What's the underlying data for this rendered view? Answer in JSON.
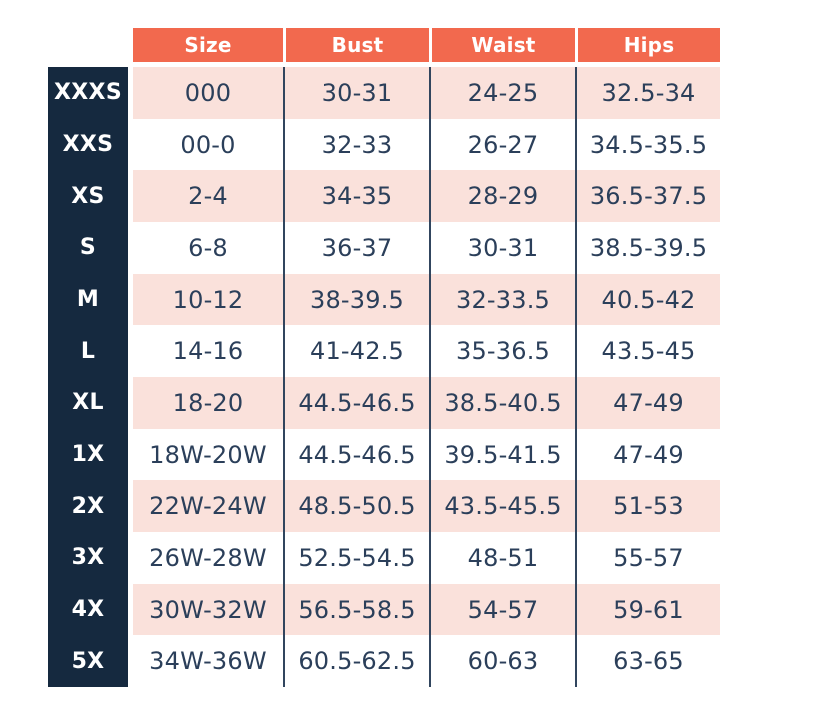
{
  "colors": {
    "header_bg": "#F2694E",
    "row_pink": "#FAE1DB",
    "row_white": "#FFFFFF",
    "label_bg": "#15293F",
    "text_navy": "#2B3F5A",
    "header_text": "#FFFFFF",
    "divider": "#31455E"
  },
  "chart_data": {
    "type": "table",
    "columns": [
      "Size",
      "Bust",
      "Waist",
      "Hips"
    ],
    "row_labels": [
      "XXXS",
      "XXS",
      "XS",
      "S",
      "M",
      "L",
      "XL",
      "1X",
      "2X",
      "3X",
      "4X",
      "5X"
    ],
    "rows": [
      {
        "label": "XXXS",
        "size": "000",
        "bust": "30-31",
        "waist": "24-25",
        "hips": "32.5-34"
      },
      {
        "label": "XXS",
        "size": "00-0",
        "bust": "32-33",
        "waist": "26-27",
        "hips": "34.5-35.5"
      },
      {
        "label": "XS",
        "size": "2-4",
        "bust": "34-35",
        "waist": "28-29",
        "hips": "36.5-37.5"
      },
      {
        "label": "S",
        "size": "6-8",
        "bust": "36-37",
        "waist": "30-31",
        "hips": "38.5-39.5"
      },
      {
        "label": "M",
        "size": "10-12",
        "bust": "38-39.5",
        "waist": "32-33.5",
        "hips": "40.5-42"
      },
      {
        "label": "L",
        "size": "14-16",
        "bust": "41-42.5",
        "waist": "35-36.5",
        "hips": "43.5-45"
      },
      {
        "label": "XL",
        "size": "18-20",
        "bust": "44.5-46.5",
        "waist": "38.5-40.5",
        "hips": "47-49"
      },
      {
        "label": "1X",
        "size": "18W-20W",
        "bust": "44.5-46.5",
        "waist": "39.5-41.5",
        "hips": "47-49"
      },
      {
        "label": "2X",
        "size": "22W-24W",
        "bust": "48.5-50.5",
        "waist": "43.5-45.5",
        "hips": "51-53"
      },
      {
        "label": "3X",
        "size": "26W-28W",
        "bust": "52.5-54.5",
        "waist": "48-51",
        "hips": "55-57"
      },
      {
        "label": "4X",
        "size": "30W-32W",
        "bust": "56.5-58.5",
        "waist": "54-57",
        "hips": "59-61"
      },
      {
        "label": "5X",
        "size": "34W-36W",
        "bust": "60.5-62.5",
        "waist": "60-63",
        "hips": "63-65"
      }
    ]
  }
}
